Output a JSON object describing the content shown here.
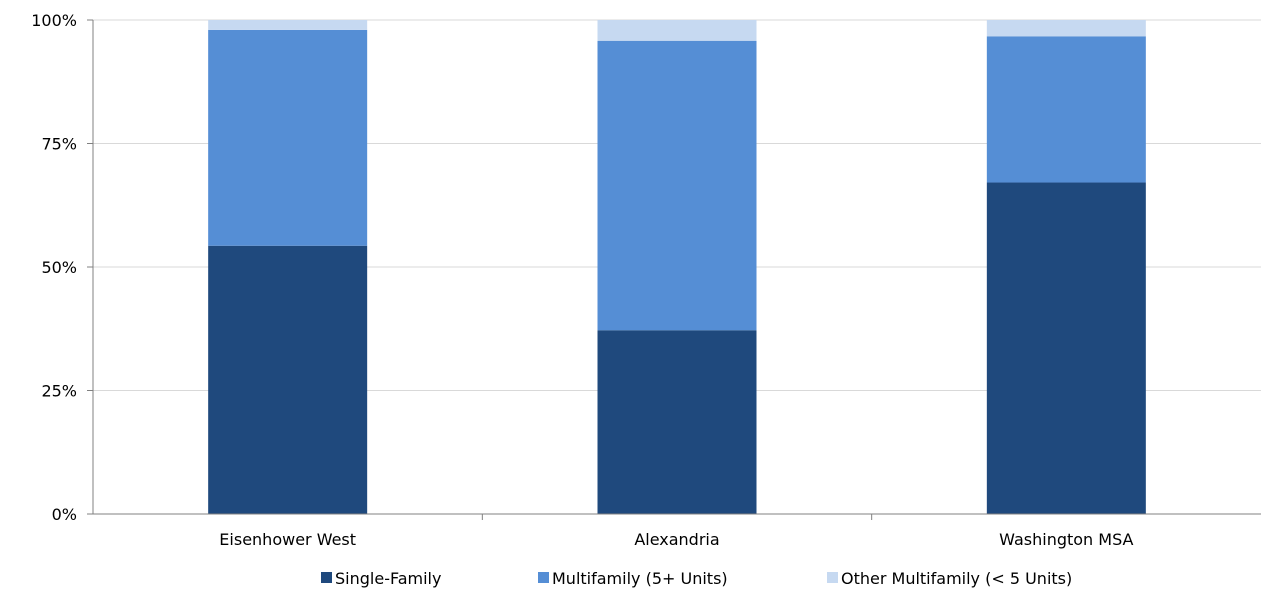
{
  "chart_data": {
    "type": "bar",
    "stacked": true,
    "title": "",
    "xlabel": "",
    "ylabel": "",
    "categories": [
      "Eisenhower West",
      "Alexandria",
      "Washington MSA"
    ],
    "series": [
      {
        "name": "Single-Family",
        "color": "#1f497d",
        "values": [
          54.3,
          37.2,
          67.1
        ]
      },
      {
        "name": "Multifamily (5+ Units)",
        "color": "#558ed5",
        "values": [
          43.7,
          58.6,
          29.6
        ]
      },
      {
        "name": "Other Multifamily (< 5 Units)",
        "color": "#c6d9f1",
        "values": [
          2.0,
          4.2,
          3.3
        ]
      }
    ],
    "ylim": [
      0,
      100
    ],
    "yticks": [
      0,
      25,
      50,
      75,
      100
    ],
    "ytick_labels": [
      "0%",
      "25%",
      "50%",
      "75%",
      "100%"
    ],
    "grid": true,
    "legend_position": "bottom"
  }
}
